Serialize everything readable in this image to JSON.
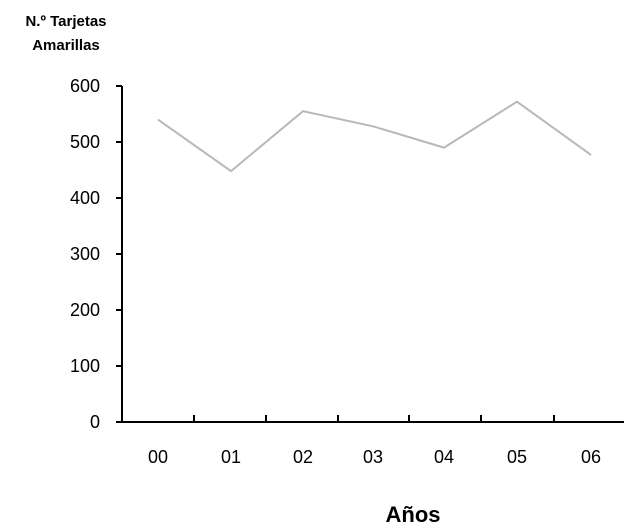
{
  "chart_data": {
    "type": "line",
    "ylabel_lines": [
      "N.º Tarjetas",
      "Amarillas"
    ],
    "xlabel": "Años",
    "categories": [
      "00",
      "01",
      "02",
      "03",
      "04",
      "05",
      "06"
    ],
    "series": [
      {
        "values": [
          540,
          448,
          555,
          528,
          490,
          572,
          477
        ]
      }
    ],
    "ylim": [
      0,
      600
    ],
    "yticks": [
      "0",
      "100",
      "200",
      "300",
      "400",
      "500",
      "600"
    ],
    "grid": false,
    "line_color": "#b8b8b8",
    "axis_color": "#000000"
  }
}
